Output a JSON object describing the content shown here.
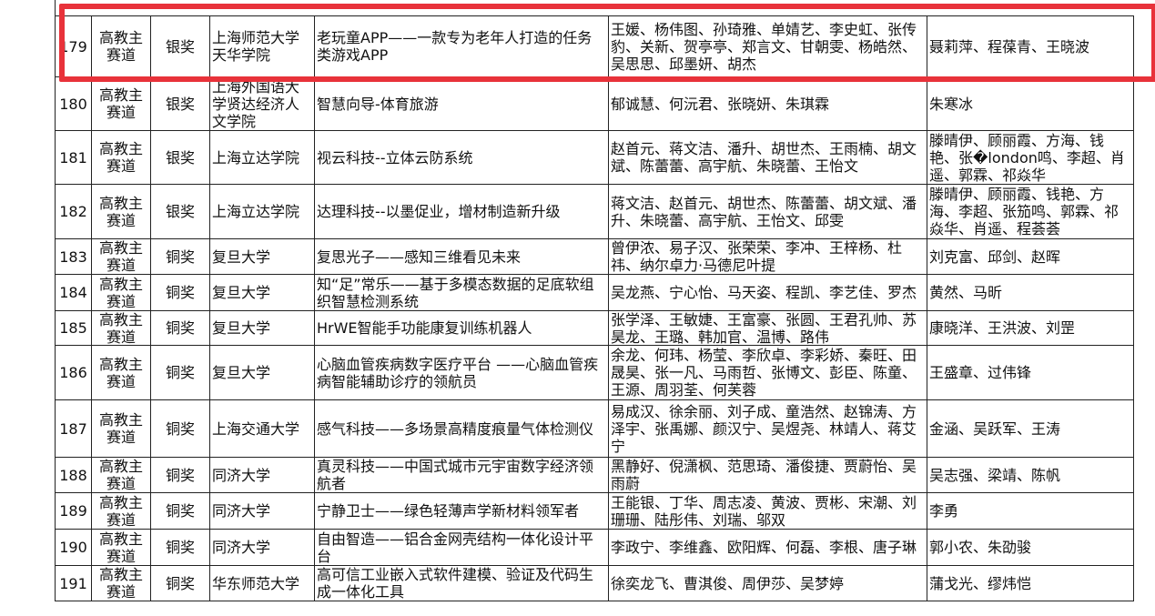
{
  "table": {
    "rows": [
      [
        "179",
        "高教主赛道",
        "银奖",
        "上海师范大学天华学院",
        "老玩童APP——一款专为老年人打造的任务类游戏APP",
        "王媛、杨伟图、孙琦雅、单婧艺、李史虹、张传豹、关新、贺亭亭、郑言文、甘朝雯、杨皓然、吴思思、邱墨妍、胡杰",
        "聂莉萍、程葆青、王晓波"
      ],
      [
        "180",
        "高教主赛道",
        "银奖",
        "上海外国语大学贤达经济人文学院",
        "智慧向导-体育旅游",
        "郁诚慧、何沅君、张晓妍、朱琪霖",
        "朱寒冰"
      ],
      [
        "181",
        "高教主赛道",
        "银奖",
        "上海立达学院",
        "视云科技--立体云防系统",
        "赵首元、蒋文洁、潘升、胡世杰、王雨楠、胡文斌、陈蕾蕾、高宇航、朱晓蕾、王怡文",
        "滕晴伊、顾丽霞、方海、钱艳、张�london鸣、李超、肖遥、郭霖、祁焱华"
      ],
      [
        "182",
        "高教主赛道",
        "银奖",
        "上海立达学院",
        "达理科技--以墨促业，增材制造新升级",
        "蒋文洁、赵首元、胡世杰、陈蕾蕾、胡文斌、潘升、朱晓蕾、高宇航、王怡文、邱雯",
        "滕晴伊、顾丽霞、钱艳、方海、李超、张笳鸣、郭霖、祁焱华、肖遥、程荟荟"
      ],
      [
        "183",
        "高教主赛道",
        "铜奖",
        "复旦大学",
        "复思光子——感知三维看见未来",
        "曾伊浓、易子汉、张荣荣、李冲、王梓杨、杜祎、纳尔卓力·马德尼叶提",
        "刘克富、邱剑、赵晖"
      ],
      [
        "184",
        "高教主赛道",
        "铜奖",
        "复旦大学",
        "知“足”常乐——基于多模态数据的足底软组织智慧检测系统",
        "吴龙燕、宁心怡、马天姿、程凯、李艺佳、罗杰",
        "黄然、马昕"
      ],
      [
        "185",
        "高教主赛道",
        "铜奖",
        "复旦大学",
        "HrWE智能手功能康复训练机器人",
        "张学泽、王敏婕、王富豪、张圆、王君孔帅、苏昊龙、王璐、韩加官、温博、路伟",
        "康晓洋、王洪波、刘罡"
      ],
      [
        "186",
        "高教主赛道",
        "铜奖",
        "复旦大学",
        "心脑血管疾病数字医疗平台 ——心脑血管疾病智能辅助诊疗的领航员",
        "余龙、何玮、杨莹、李欣卓、李彩娇、秦旺、田晟昊、张一凡、马雨哲、张博文、彭臣、陈童、王源、周羽荃、何芙蓉",
        "王盛章、过伟锋"
      ],
      [
        "187",
        "高教主赛道",
        "铜奖",
        "上海交通大学",
        "感气科技——多场景高精度痕量气体检测仪",
        "易成汉、徐余丽、刘子成、童浩然、赵锦涛、方泽宇、张禹娜、颜汉宁、吴煜尧、林靖人、蒋艾宁",
        "金涵、吴跃军、王涛"
      ],
      [
        "188",
        "高教主赛道",
        "铜奖",
        "同济大学",
        "真灵科技——中国式城市元宇宙数字经济领航者",
        "黑静好、倪潇枫、范思琦、潘俊捷、贾蔚怡、吴雨蔚",
        "吴志强、梁靖、陈帆"
      ],
      [
        "189",
        "高教主赛道",
        "铜奖",
        "同济大学",
        "宁静卫士——绿色轻薄声学新材料领军者",
        "王能银、丁华、周志凌、黄波、贾彬、宋潮、刘珊珊、陆彤伟、刘瑞、邬双",
        "李勇"
      ],
      [
        "190",
        "高教主赛道",
        "铜奖",
        "同济大学",
        "自由智造——铝合金网壳结构一体化设计平台",
        "李政宁、李维鑫、欧阳辉、何磊、李根、唐子琳",
        "郭小农、朱劭骏"
      ],
      [
        "191",
        "高教主赛道",
        "铜奖",
        "华东师范大学",
        "高可信工业嵌入式软件建模、验证及代码生成一体化工具",
        "徐奕龙飞、曹淇俊、周伊莎、吴梦婷",
        "蒲戈光、缪炜恺"
      ]
    ]
  }
}
